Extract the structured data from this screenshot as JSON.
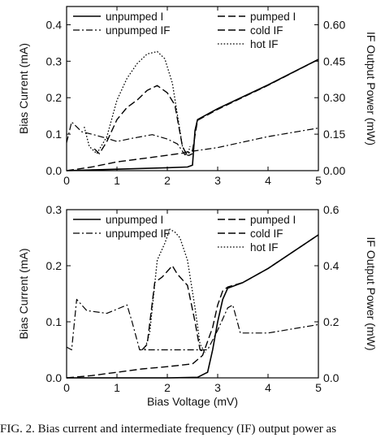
{
  "caption": "FIG. 2. Bias current and intermediate frequency (IF) output power as",
  "chart_data": [
    {
      "type": "line",
      "xlabel": "",
      "ylabel": "Bias Current (mA)",
      "y2label": "IF Output Power (mW)",
      "xlim": [
        0,
        5
      ],
      "ylim": [
        0,
        0.45
      ],
      "y2lim": [
        0,
        0.675
      ],
      "x_ticks": [
        "0",
        "1",
        "2",
        "3",
        "4",
        "5"
      ],
      "y_ticks": [
        "0.0",
        "0.1",
        "0.2",
        "0.3",
        "0.4"
      ],
      "y2_ticks": [
        "0.00",
        "0.15",
        "0.30",
        "0.45",
        "0.60"
      ],
      "legend": [
        "unpumped I",
        "pumped I",
        "unpumped IF",
        "cold IF",
        "hot IF"
      ],
      "series": [
        {
          "name": "unpumped I",
          "axis": "left",
          "style": "solid",
          "x": [
            0,
            0.5,
            1,
            1.5,
            2,
            2.4,
            2.5,
            2.55,
            2.6,
            3,
            4,
            5
          ],
          "y": [
            0,
            0.002,
            0.004,
            0.006,
            0.008,
            0.01,
            0.015,
            0.11,
            0.14,
            0.17,
            0.235,
            0.305
          ]
        },
        {
          "name": "pumped I",
          "axis": "left",
          "style": "dash",
          "x": [
            0,
            0.5,
            1,
            1.5,
            2,
            2.3,
            2.5,
            2.6,
            3,
            4,
            5
          ],
          "y": [
            0,
            0.01,
            0.024,
            0.033,
            0.042,
            0.048,
            0.055,
            0.138,
            0.168,
            0.234,
            0.305
          ]
        },
        {
          "name": "unpumped IF",
          "axis": "right",
          "style": "dashdot",
          "x": [
            0,
            0.1,
            0.3,
            0.5,
            0.8,
            1,
            1.3,
            1.7,
            2,
            2.2,
            2.35,
            2.5,
            3,
            4,
            5
          ],
          "y": [
            0.115,
            0.2,
            0.16,
            0.15,
            0.133,
            0.12,
            0.133,
            0.148,
            0.13,
            0.11,
            0.065,
            0.08,
            0.095,
            0.14,
            0.175
          ]
        },
        {
          "name": "cold IF",
          "axis": "right",
          "style": "dash",
          "x": [
            0.55,
            0.65,
            0.8,
            1,
            1.2,
            1.4,
            1.6,
            1.8,
            2,
            2.15,
            2.3,
            2.4,
            2.5
          ],
          "y": [
            0.09,
            0.07,
            0.12,
            0.21,
            0.26,
            0.29,
            0.33,
            0.35,
            0.32,
            0.27,
            0.1,
            0.06,
            0.07
          ]
        },
        {
          "name": "hot IF",
          "axis": "right",
          "style": "dot",
          "x": [
            0.35,
            0.45,
            0.6,
            0.8,
            1,
            1.2,
            1.4,
            1.6,
            1.8,
            1.95,
            2.1,
            2.3,
            2.4,
            2.45
          ],
          "y": [
            0.18,
            0.1,
            0.07,
            0.14,
            0.29,
            0.38,
            0.44,
            0.48,
            0.49,
            0.46,
            0.36,
            0.1,
            0.06,
            0.1
          ]
        }
      ]
    },
    {
      "type": "line",
      "xlabel": "Bias Voltage (mV)",
      "ylabel": "Bias Current (mA)",
      "y2label": "IF Output Power (mW)",
      "xlim": [
        0,
        5
      ],
      "ylim": [
        0,
        0.3
      ],
      "y2lim": [
        0,
        0.6
      ],
      "x_ticks": [
        "0",
        "1",
        "2",
        "3",
        "4",
        "5"
      ],
      "y_ticks": [
        "0.0",
        "0.1",
        "0.2",
        "0.3"
      ],
      "y2_ticks": [
        "0.0",
        "0.2",
        "0.4",
        "0.6"
      ],
      "legend": [
        "unpumped I",
        "pumped I",
        "unpumped IF",
        "cold IF",
        "hot IF"
      ],
      "series": [
        {
          "name": "unpumped I",
          "axis": "left",
          "style": "solid",
          "x": [
            0,
            1,
            2,
            2.6,
            2.8,
            2.9,
            3,
            3.1,
            3.2,
            3.5,
            4,
            5
          ],
          "y": [
            0,
            0,
            0,
            0.001,
            0.01,
            0.05,
            0.1,
            0.14,
            0.16,
            0.17,
            0.195,
            0.255
          ]
        },
        {
          "name": "pumped I",
          "axis": "left",
          "style": "dash",
          "x": [
            0,
            0.5,
            1,
            1.5,
            2,
            2.5,
            2.7,
            2.9,
            3,
            3.1,
            3.2,
            3.5,
            4,
            5
          ],
          "y": [
            0,
            0.004,
            0.01,
            0.016,
            0.02,
            0.025,
            0.04,
            0.09,
            0.13,
            0.155,
            0.162,
            0.17,
            0.195,
            0.255
          ]
        },
        {
          "name": "unpumped IF",
          "axis": "right",
          "style": "dashdot",
          "x": [
            0,
            0.1,
            0.2,
            0.4,
            0.8,
            1.2,
            1.3,
            1.45,
            1.6,
            2,
            2.5,
            2.8,
            3,
            3.2,
            3.3,
            3.45,
            3.6,
            4,
            5
          ],
          "y": [
            0.11,
            0.1,
            0.28,
            0.24,
            0.23,
            0.26,
            0.2,
            0.1,
            0.1,
            0.1,
            0.1,
            0.1,
            0.17,
            0.25,
            0.26,
            0.16,
            0.16,
            0.16,
            0.19
          ]
        },
        {
          "name": "cold IF",
          "axis": "right",
          "style": "dash",
          "x": [
            1.5,
            1.6,
            1.75,
            1.9,
            2,
            2.1,
            2.2,
            2.4,
            2.55,
            2.65,
            2.75
          ],
          "y": [
            0.1,
            0.12,
            0.34,
            0.36,
            0.38,
            0.4,
            0.37,
            0.33,
            0.2,
            0.1,
            0.09
          ]
        },
        {
          "name": "hot IF",
          "axis": "right",
          "style": "dot",
          "x": [
            1.55,
            1.65,
            1.8,
            1.95,
            2.05,
            2.15,
            2.25,
            2.4,
            2.55,
            2.65,
            2.75
          ],
          "y": [
            0.1,
            0.16,
            0.42,
            0.48,
            0.53,
            0.52,
            0.5,
            0.42,
            0.25,
            0.12,
            0.09
          ]
        }
      ]
    }
  ]
}
